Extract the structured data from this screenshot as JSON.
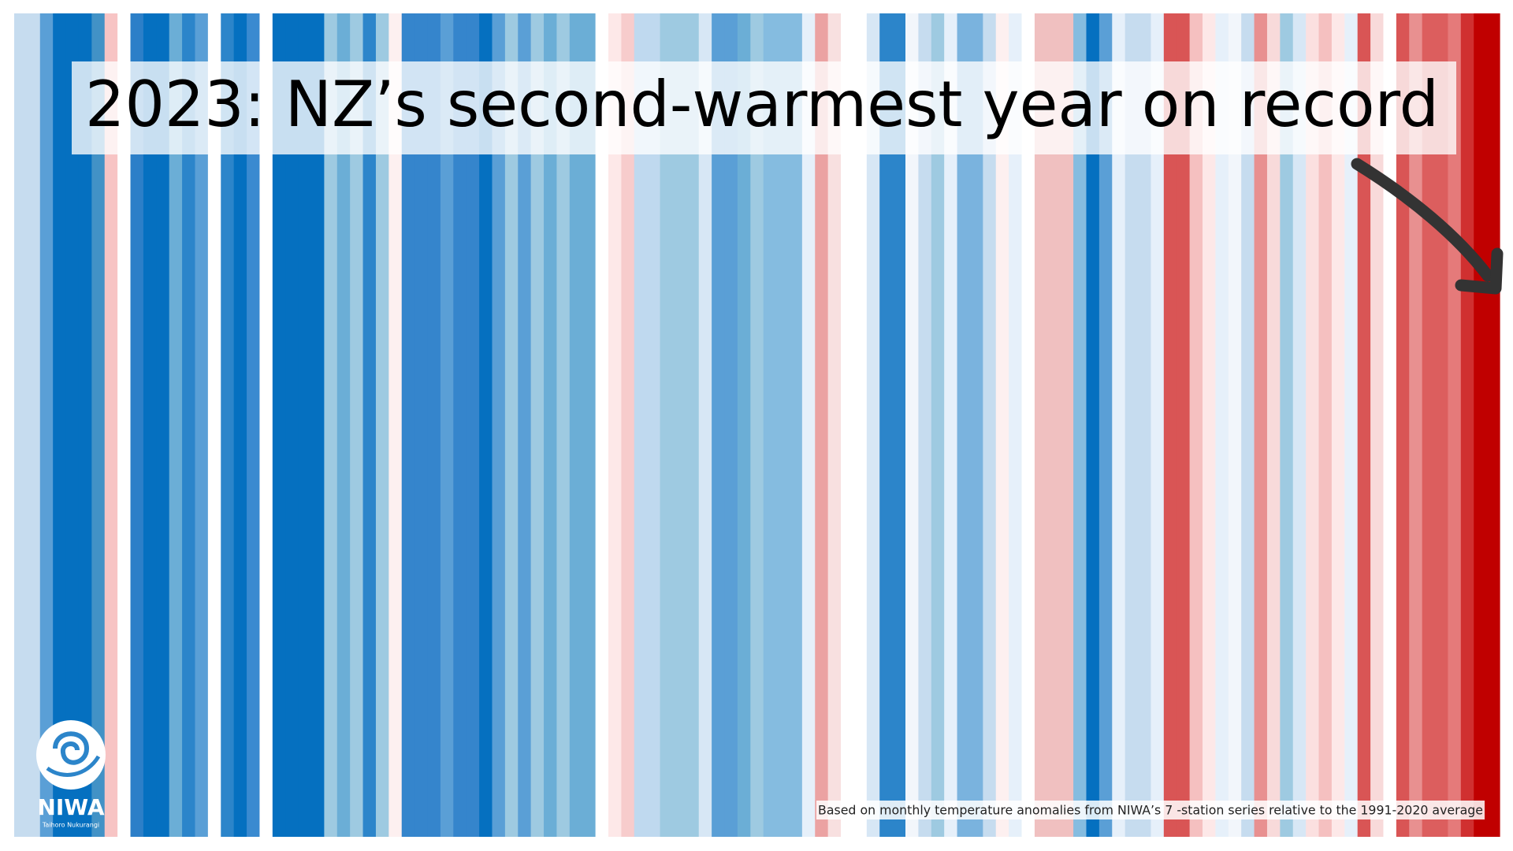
{
  "chart_data": {
    "type": "stripes",
    "title": "2023: NZ’s second-warmest year on record",
    "note": "Based on monthly temperature anomalies from  NIWA’s 7 -station series relative to the 1991-2020 average",
    "logo": {
      "name": "NIWA",
      "subtitle": "Taihoro Nukurangi"
    },
    "colors": [
      "#c6dcef",
      "#c6dcef",
      "#5a9fd6",
      "#0570c0",
      "#0570c0",
      "#0570c0",
      "#4292c6",
      "#f7c4c4",
      "#ffffff",
      "#2c7fc8",
      "#0570c0",
      "#0570c0",
      "#6baed6",
      "#2c85ca",
      "#5a9fd6",
      "#ffffff",
      "#2c85ca",
      "#0570c0",
      "#3a8ad0",
      "#ffffff",
      "#0570c0",
      "#0570c0",
      "#0570c0",
      "#0570c0",
      "#9ecae1",
      "#6baed6",
      "#9ecae1",
      "#2c85ca",
      "#9ecae1",
      "#fdf0f0",
      "#3585cc",
      "#3585cc",
      "#3585cc",
      "#5a9fd6",
      "#3585cc",
      "#3585cc",
      "#0570c0",
      "#5a9fd6",
      "#9ecae1",
      "#5a9fd6",
      "#9ecae1",
      "#6baed6",
      "#9ecae1",
      "#6baed6",
      "#6baed6",
      "#ffffff",
      "#fde8e8",
      "#f7cccc",
      "#bfd9ef",
      "#bfd9ef",
      "#9ecae1",
      "#9ecae1",
      "#9ecae1",
      "#d7e7f5",
      "#5a9fd6",
      "#5a9fd6",
      "#6baed6",
      "#9ecae1",
      "#85bce0",
      "#85bce0",
      "#85bce0",
      "#e6f0fa",
      "#eba2a2",
      "#f8e0e0",
      "#ffffff",
      "#ffffff",
      "#d7e7f5",
      "#2c85ca",
      "#2c85ca",
      "#f2f6fb",
      "#c6dcef",
      "#9ecae1",
      "#e6f0fa",
      "#7ab3de",
      "#7ab3de",
      "#c6dcef",
      "#fdf0f0",
      "#e6f0fa",
      "#ffffff",
      "#f0c0c0",
      "#f0c0c0",
      "#f0c0c0",
      "#85bce0",
      "#0570c0",
      "#5a9fd6",
      "#e6f0fa",
      "#c6dcef",
      "#c6dcef",
      "#e6f0fa",
      "#d95555",
      "#d95555",
      "#f5c0c0",
      "#fde8e8",
      "#e6f0fa",
      "#f2f6fb",
      "#c6dcef",
      "#e89090",
      "#f8dada",
      "#9ecae1",
      "#d7e7f5",
      "#fbe0e0",
      "#f5c0c0",
      "#fde8e8",
      "#e6f0fa",
      "#d95555",
      "#f8dada",
      "#ffffff",
      "#d95555",
      "#e89090",
      "#dc5e5e",
      "#dc5e5e",
      "#e57a7a",
      "#d03030",
      "#c00000",
      "#c00000"
    ]
  }
}
